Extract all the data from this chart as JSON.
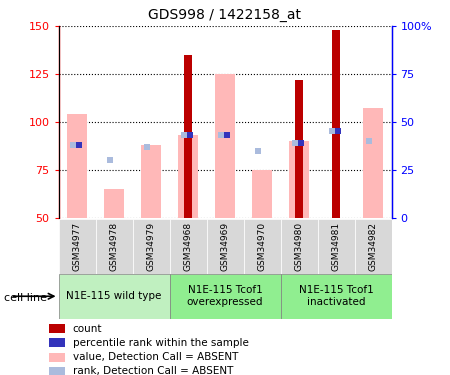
{
  "title": "GDS998 / 1422158_at",
  "samples": [
    "GSM34977",
    "GSM34978",
    "GSM34979",
    "GSM34968",
    "GSM34969",
    "GSM34970",
    "GSM34980",
    "GSM34981",
    "GSM34982"
  ],
  "count_values": [
    null,
    null,
    null,
    135,
    null,
    null,
    122,
    148,
    null
  ],
  "pink_values": [
    104,
    65,
    88,
    93,
    125,
    75,
    90,
    null,
    107
  ],
  "blue_sq_values": [
    88,
    80,
    87,
    93,
    93,
    85,
    89,
    95,
    90
  ],
  "blue_dark_values": [
    88,
    null,
    null,
    93,
    93,
    null,
    89,
    95,
    null
  ],
  "ylim_left": [
    50,
    150
  ],
  "yticks_left": [
    50,
    75,
    100,
    125,
    150
  ],
  "yticks_right": [
    0,
    25,
    50,
    75,
    100
  ],
  "yticklabels_right": [
    "0",
    "25",
    "50",
    "75",
    "100%"
  ],
  "red_color": "#bb0000",
  "pink_color": "#ffb8b8",
  "blue_dark_color": "#3333bb",
  "blue_light_color": "#aabbdd",
  "group_labels": [
    "N1E-115 wild type",
    "N1E-115 Tcof1\noverexpressed",
    "N1E-115 Tcof1\ninactivated"
  ],
  "group_ranges": [
    [
      0,
      2
    ],
    [
      3,
      5
    ],
    [
      6,
      8
    ]
  ],
  "group_colors": [
    "#c0f0c0",
    "#90ee90",
    "#90ee90"
  ],
  "sample_bg_color": "#d8d8d8",
  "legend_labels": [
    "count",
    "percentile rank within the sample",
    "value, Detection Call = ABSENT",
    "rank, Detection Call = ABSENT"
  ],
  "legend_colors": [
    "#bb0000",
    "#3333bb",
    "#ffb8b8",
    "#aabbdd"
  ]
}
